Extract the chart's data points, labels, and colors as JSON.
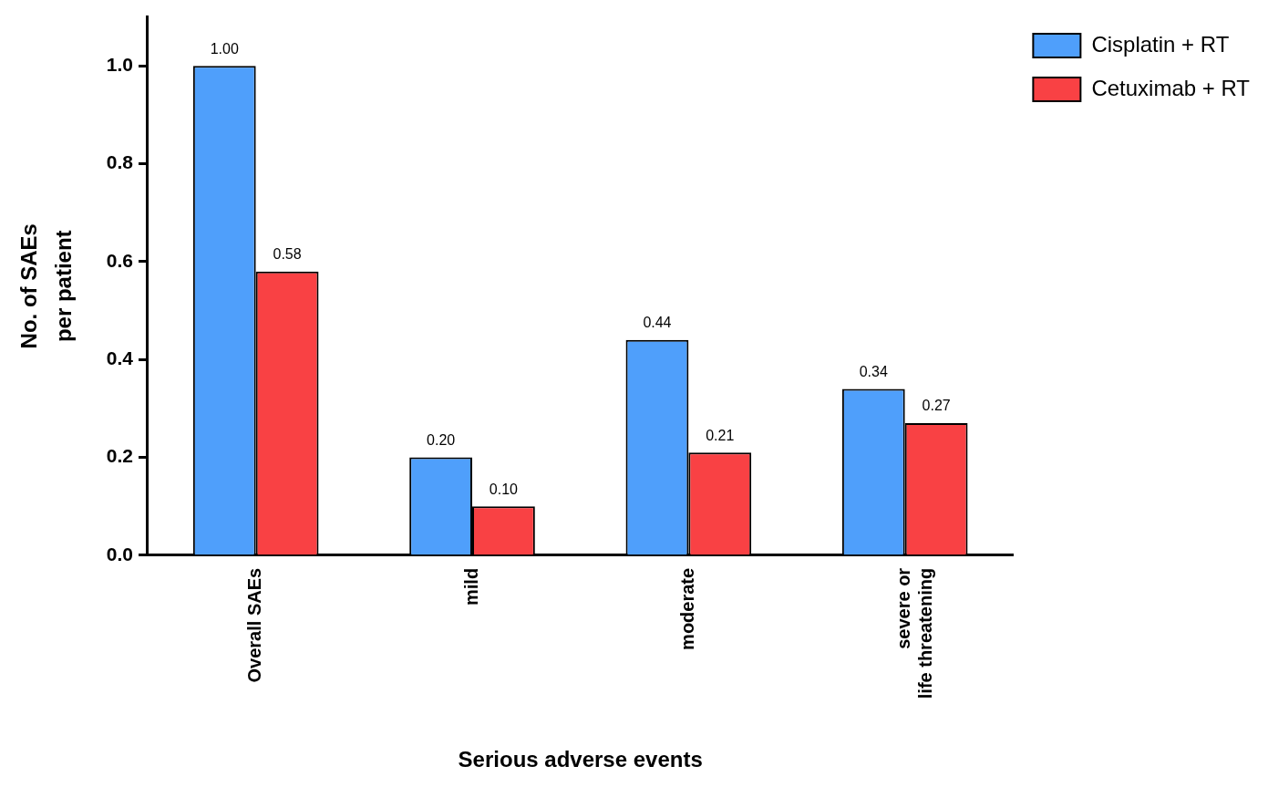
{
  "chart_data": {
    "type": "bar",
    "xlabel": "Serious adverse events",
    "ylabel": "No. of SAEs\nper patient",
    "categories": [
      "Overall SAEs",
      "mild",
      "moderate",
      "severe or\nlife threatening"
    ],
    "series": [
      {
        "name": "Cisplatin + RT",
        "color": "#4f9ffb",
        "values": [
          1.0,
          0.2,
          0.44,
          0.34
        ],
        "value_labels": [
          "1.00",
          "0.20",
          "0.44",
          "0.34"
        ]
      },
      {
        "name": "Cetuximab + RT",
        "color": "#f94144",
        "values": [
          0.58,
          0.1,
          0.21,
          0.27
        ],
        "value_labels": [
          "0.58",
          "0.10",
          "0.21",
          "0.27"
        ]
      }
    ],
    "ylim": [
      0,
      1.1
    ],
    "yticks": [
      {
        "value": 0,
        "label": "0.0"
      },
      {
        "value": 0.2,
        "label": "0.2"
      },
      {
        "value": 0.4,
        "label": "0.4"
      },
      {
        "value": 0.6,
        "label": "0.6"
      },
      {
        "value": 0.8,
        "label": "0.8"
      },
      {
        "value": 1.0,
        "label": "1.0"
      }
    ],
    "grid": false,
    "legend": "top right"
  }
}
